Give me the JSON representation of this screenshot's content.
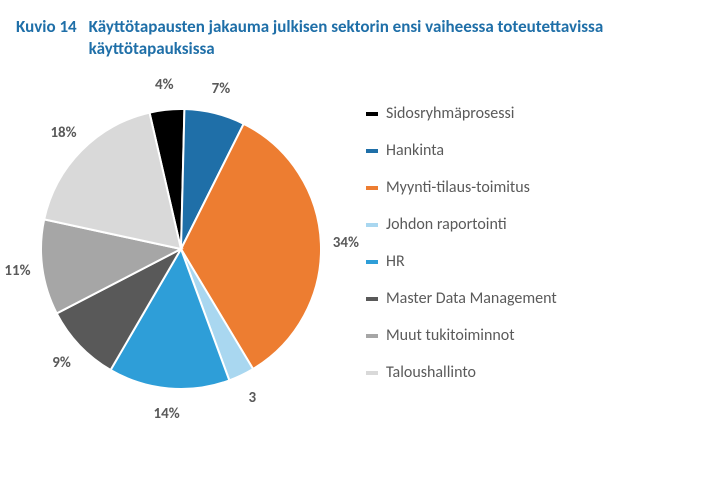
{
  "title_prefix": "Kuvio 14",
  "title_main": "Käyttötapausten jakauma julkisen sektorin ensi vaiheessa toteutettavissa käyttötapauksissa",
  "chart": {
    "type": "pie",
    "background_color": "#ffffff",
    "label_fontsize": 15,
    "label_color": "#5a5a5a",
    "title_color": "#1f6fa8",
    "title_fontsize": 17,
    "legend_fontsize": 16,
    "legend_text_color": "#5a5a5a",
    "start_angle_deg": -13,
    "radius": 140,
    "slices": [
      {
        "label": "Sidosryhmäprosessi",
        "value": 4,
        "display": "4%",
        "color": "#000000"
      },
      {
        "label": "Hankinta",
        "value": 7,
        "display": "7%",
        "color": "#1f6fa8"
      },
      {
        "label": "Myynti-tilaus-toimitus",
        "value": 34,
        "display": "34%",
        "color": "#ed7d31"
      },
      {
        "label": "Johdon raportointi",
        "value": 3,
        "display": "3",
        "color": "#a9d7f0"
      },
      {
        "label": "HR",
        "value": 14,
        "display": "14%",
        "color": "#2e9ed8"
      },
      {
        "label": "Master Data Management",
        "value": 9,
        "display": "9%",
        "color": "#595959"
      },
      {
        "label": "Muut tukitoiminnot",
        "value": 11,
        "display": "11%",
        "color": "#a6a6a6"
      },
      {
        "label": "Taloushallinto",
        "value": 18,
        "display": "18%",
        "color": "#d9d9d9"
      }
    ]
  }
}
